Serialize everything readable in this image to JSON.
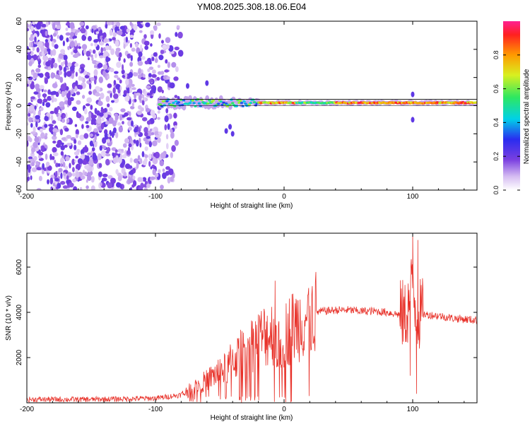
{
  "title": "YM08.2025.308.18.06.E04",
  "colors": {
    "snr_line": "#e8322a",
    "spectrum": "#7a3fe0",
    "axis": "#000000"
  },
  "chart_data": [
    {
      "type": "heatmap",
      "name": "spectrogram",
      "title": "YM08.2025.308.18.06.E04",
      "xlabel": "Height of straight line (km)",
      "ylabel": "Frequency (Hz)",
      "xlim": [
        -200,
        150
      ],
      "ylim": [
        -60,
        60
      ],
      "x_ticks": [
        "-200",
        "-100",
        "0",
        "100"
      ],
      "y_ticks": [
        "-60",
        "-40",
        "-20",
        "0",
        "20",
        "40",
        "60"
      ],
      "colorbar": {
        "label": "Normalized spectral amplitude",
        "ticks": [
          "0.0",
          "0.2",
          "0.4",
          "0.6",
          "0.8"
        ],
        "range": [
          0,
          1
        ]
      },
      "features": [
        {
          "name": "broadband noise",
          "x_range": [
            -200,
            -78
          ],
          "freq_range": [
            -60,
            60
          ],
          "amplitude": 0.1
        },
        {
          "name": "signal track",
          "x_range": [
            -97,
            150
          ],
          "center_freq": 2,
          "amplitude": 0.95
        }
      ]
    },
    {
      "type": "line",
      "name": "snr",
      "xlabel": "Height of straight line (km)",
      "ylabel": "SNR (10 * v/v)",
      "xlim": [
        -200,
        150
      ],
      "ylim": [
        0,
        7500
      ],
      "x_ticks": [
        "-200",
        "-100",
        "0",
        "100"
      ],
      "y_ticks": [
        "2000",
        "4000",
        "6000"
      ],
      "series": [
        {
          "name": "SNR",
          "x": [
            -200,
            -150,
            -100,
            -80,
            -70,
            -60,
            -50,
            -45,
            -40,
            -35,
            -30,
            -25,
            -20,
            -15,
            -10,
            -7,
            -5,
            0,
            5,
            10,
            15,
            20,
            25,
            30,
            40,
            50,
            60,
            70,
            80,
            85,
            90,
            95,
            98,
            100,
            102,
            104,
            106,
            110,
            120,
            130,
            140,
            150
          ],
          "values": [
            150,
            150,
            200,
            350,
            700,
            1000,
            1400,
            1500,
            1900,
            2100,
            2400,
            2600,
            2800,
            3000,
            3100,
            3300,
            2300,
            3000,
            3300,
            3500,
            3700,
            3900,
            4000,
            4050,
            4100,
            4100,
            4050,
            4050,
            4000,
            3950,
            3900,
            3850,
            4600,
            5500,
            4300,
            3700,
            3950,
            3900,
            3850,
            3750,
            3700,
            3650
          ]
        }
      ],
      "spikes": [
        {
          "x": -7,
          "value": 5400
        },
        {
          "x": 100,
          "value": 7500
        },
        {
          "x": 103,
          "value": 400
        },
        {
          "x": 104,
          "value": 7200
        },
        {
          "x": 98,
          "value": 1200
        }
      ]
    }
  ]
}
